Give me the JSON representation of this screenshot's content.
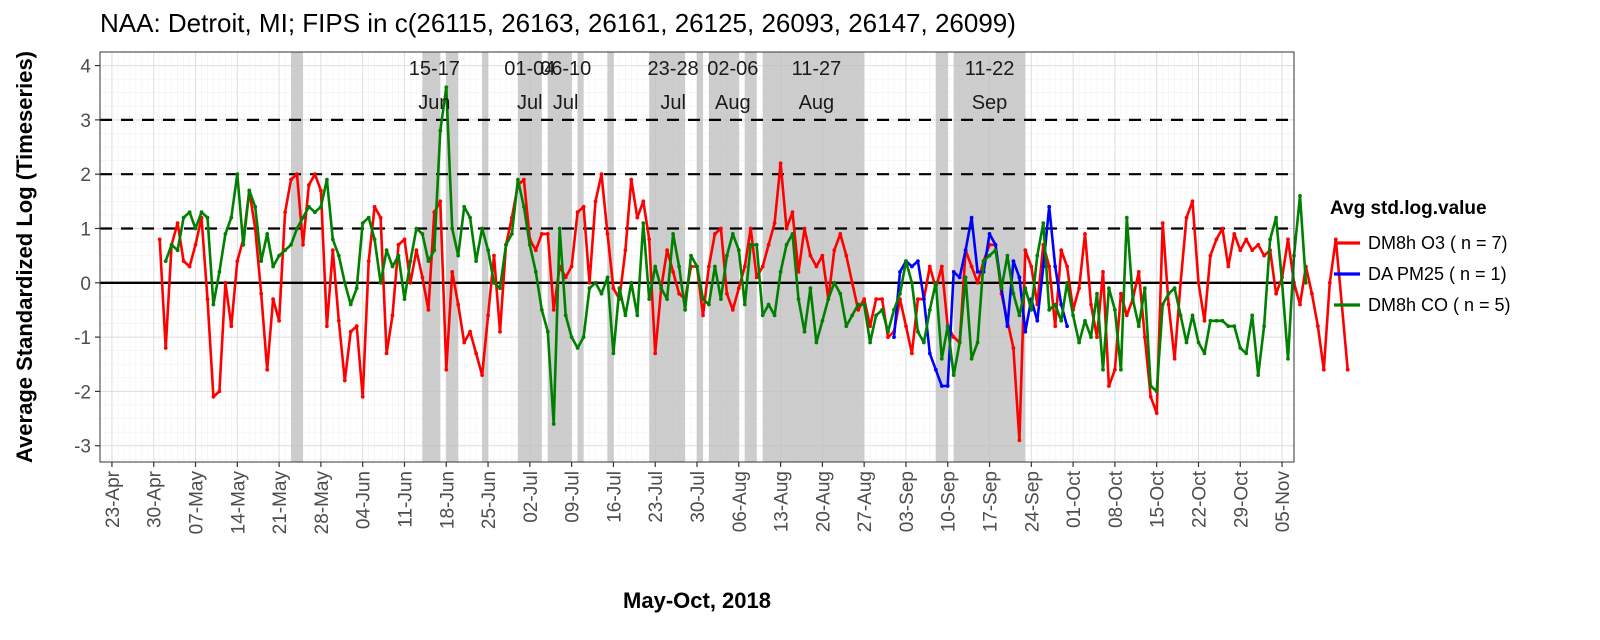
{
  "chart_data": {
    "type": "line",
    "title": "NAA: Detroit, MI; FIPS in c(26115, 26163, 26161, 26125, 26093, 26147, 26099)",
    "xlabel": "May-Oct, 2018",
    "ylabel": "Average Standardized Log (Timeseries)",
    "xlim": [
      "2018-04-21",
      "2018-11-07"
    ],
    "ylim": [
      -3.3,
      4.25
    ],
    "x_ticks": [
      "2018-04-23",
      "2018-04-30",
      "2018-05-07",
      "2018-05-14",
      "2018-05-21",
      "2018-05-28",
      "2018-06-04",
      "2018-06-11",
      "2018-06-18",
      "2018-06-25",
      "2018-07-02",
      "2018-07-09",
      "2018-07-16",
      "2018-07-23",
      "2018-07-30",
      "2018-08-06",
      "2018-08-13",
      "2018-08-20",
      "2018-08-27",
      "2018-09-03",
      "2018-09-10",
      "2018-09-17",
      "2018-09-24",
      "2018-10-01",
      "2018-10-08",
      "2018-10-15",
      "2018-10-22",
      "2018-10-29",
      "2018-11-05"
    ],
    "x_tick_labels": [
      "23-Apr",
      "30-Apr",
      "07-May",
      "14-May",
      "21-May",
      "28-May",
      "04-Jun",
      "11-Jun",
      "18-Jun",
      "25-Jun",
      "02-Jul",
      "09-Jul",
      "16-Jul",
      "23-Jul",
      "30-Jul",
      "06-Aug",
      "13-Aug",
      "20-Aug",
      "27-Aug",
      "03-Sep",
      "10-Sep",
      "17-Sep",
      "24-Sep",
      "01-Oct",
      "08-Oct",
      "15-Oct",
      "22-Oct",
      "29-Oct",
      "05-Nov"
    ],
    "y_ticks": [
      -3,
      -2,
      -1,
      0,
      1,
      2,
      3,
      4
    ],
    "y_tick_labels": [
      "-3",
      "-2",
      "-1",
      "0",
      "1",
      "2",
      "3",
      "4"
    ],
    "hlines_dashed": [
      1,
      2,
      3
    ],
    "hline_solid": 0,
    "grid": true,
    "legend": {
      "title": "Avg std.log.value",
      "placement": "right",
      "entries": [
        {
          "label": "DM8h O3 ( n = 7)",
          "color": "#ff0000"
        },
        {
          "label": "DA PM25 ( n = 1)",
          "color": "#0000ff"
        },
        {
          "label": "DM8h CO ( n = 5)",
          "color": "#008000"
        }
      ]
    },
    "shaded_periods": [
      [
        "2018-05-23",
        "2018-05-25"
      ],
      [
        "2018-06-14",
        "2018-06-17"
      ],
      [
        "2018-06-18",
        "2018-06-20"
      ],
      [
        "2018-06-24",
        "2018-06-25"
      ],
      [
        "2018-06-30",
        "2018-07-04"
      ],
      [
        "2018-07-05",
        "2018-07-09"
      ],
      [
        "2018-07-10",
        "2018-07-11"
      ],
      [
        "2018-07-15",
        "2018-07-16"
      ],
      [
        "2018-07-22",
        "2018-07-28"
      ],
      [
        "2018-07-30",
        "2018-07-31"
      ],
      [
        "2018-08-01",
        "2018-08-06"
      ],
      [
        "2018-08-07",
        "2018-08-09"
      ],
      [
        "2018-08-10",
        "2018-08-27"
      ],
      [
        "2018-09-08",
        "2018-09-10"
      ],
      [
        "2018-09-11",
        "2018-09-23"
      ]
    ],
    "annotations": [
      {
        "line1": "15-17",
        "line2": "Jun",
        "x": "2018-06-16"
      },
      {
        "line1": "01-04",
        "line2": "Jul",
        "x": "2018-07-02"
      },
      {
        "line1": "06-10",
        "line2": "Jul",
        "x": "2018-07-08"
      },
      {
        "line1": "23-28",
        "line2": "Jul",
        "x": "2018-07-26"
      },
      {
        "line1": "02-06",
        "line2": "Aug",
        "x": "2018-08-05"
      },
      {
        "line1": "11-27",
        "line2": "Aug",
        "x": "2018-08-19"
      },
      {
        "line1": "11-22",
        "line2": "Sep",
        "x": "2018-09-17"
      }
    ],
    "series": [
      {
        "name": "DM8h O3 ( n = 7)",
        "color": "#ff0000",
        "start": "2018-05-01",
        "values": [
          0.8,
          -1.2,
          0.7,
          1.1,
          0.4,
          0.3,
          0.7,
          1.2,
          -0.3,
          -2.1,
          -2.0,
          0.0,
          -0.8,
          0.4,
          0.8,
          1.7,
          1.0,
          -0.2,
          -1.6,
          -0.3,
          -0.7,
          1.3,
          1.9,
          2.0,
          0.7,
          1.8,
          2.0,
          1.7,
          -0.8,
          0.6,
          -0.7,
          -1.8,
          -0.9,
          -0.8,
          -2.1,
          0.4,
          1.4,
          1.2,
          -1.3,
          -0.6,
          0.7,
          0.8,
          0.0,
          0.6,
          0.1,
          -0.5,
          1.3,
          1.5,
          -1.6,
          0.2,
          -0.4,
          -1.1,
          -0.9,
          -1.3,
          -1.7,
          -0.6,
          0.5,
          -0.9,
          0.7,
          1.2,
          1.8,
          1.9,
          0.8,
          0.6,
          0.9,
          0.9,
          -0.5,
          0.3,
          0.1,
          0.3,
          1.3,
          1.4,
          0.0,
          1.5,
          2.0,
          0.9,
          -0.1,
          -0.3,
          0.6,
          1.9,
          1.2,
          1.5,
          0.8,
          -1.3,
          -0.1,
          0.6,
          0.2,
          -0.2,
          -0.3,
          0.3,
          0.3,
          -0.6,
          0.3,
          0.9,
          1.0,
          -0.2,
          -0.5,
          -0.1,
          0.3,
          1.0,
          0.1,
          0.3,
          0.7,
          1.1,
          2.2,
          1.0,
          1.3,
          0.2,
          1.0,
          0.5,
          0.3,
          0.5,
          -0.3,
          0.6,
          0.9,
          0.5,
          0.0,
          -0.5,
          -0.3,
          -0.8,
          -0.3,
          -0.3,
          -1.0,
          -0.9,
          -0.3,
          -0.8,
          -1.3,
          -0.3,
          -0.3,
          0.3,
          -0.1,
          0.3,
          -0.8,
          -1.0,
          -1.1,
          0.6,
          0.3,
          0.0,
          0.4,
          0.7,
          0.7,
          -0.2,
          -0.7,
          -1.2,
          -2.9,
          0.6,
          0.3,
          -0.4,
          0.7,
          0.3,
          -0.8,
          0.6,
          0.3,
          -0.5,
          -0.1,
          0.9,
          -0.4,
          -1.0,
          0.2,
          -1.9,
          -1.6,
          -0.2,
          -0.6,
          -0.3,
          0.2,
          -1.0,
          -2.1,
          -2.4,
          1.1,
          -0.4,
          -1.4,
          0.0,
          1.2,
          1.5,
          0.0,
          -0.7,
          0.5,
          0.8,
          1.0,
          0.3,
          0.9,
          0.6,
          0.8,
          0.6,
          0.7,
          0.5,
          0.6,
          -0.2,
          0.1,
          0.8,
          0.0,
          -0.4,
          0.3,
          -0.2,
          -0.8,
          -1.6,
          0.0,
          0.8,
          -0.4,
          -1.6
        ]
      },
      {
        "name": "DA PM25 ( n = 1)",
        "color": "#0000ff",
        "start": "2018-09-01",
        "values": [
          -1.0,
          0.2,
          0.4,
          0.3,
          0.4,
          -0.3,
          -1.3,
          -1.6,
          -1.9,
          -1.9,
          0.2,
          0.1,
          0.6,
          1.2,
          0.2,
          0.2,
          0.9,
          0.7,
          -0.1,
          -0.8,
          0.4,
          0.1,
          -0.9,
          -0.3,
          -0.7,
          0.3,
          1.4,
          0.3,
          -0.4,
          -0.8
        ]
      },
      {
        "name": "DM8h CO ( n = 5)",
        "color": "#008000",
        "start": "2018-05-02",
        "values": [
          0.4,
          0.7,
          0.6,
          1.2,
          1.3,
          1.0,
          1.3,
          1.2,
          -0.4,
          0.2,
          0.9,
          1.2,
          2.0,
          0.7,
          1.7,
          1.4,
          0.4,
          0.9,
          0.3,
          0.5,
          0.6,
          0.7,
          1.0,
          1.2,
          1.4,
          1.3,
          1.4,
          1.9,
          0.8,
          0.5,
          0.0,
          -0.4,
          -0.1,
          1.1,
          1.2,
          0.8,
          0.0,
          0.6,
          0.3,
          0.5,
          -0.3,
          0.4,
          1.0,
          0.9,
          0.4,
          0.6,
          2.8,
          3.6,
          1.0,
          0.5,
          1.4,
          1.2,
          0.4,
          1.0,
          0.6,
          0.0,
          -0.1,
          0.7,
          0.9,
          1.9,
          1.4,
          0.7,
          0.2,
          -0.5,
          -0.9,
          -2.6,
          1.0,
          -0.6,
          -1.0,
          -1.2,
          -1.0,
          -0.1,
          0.0,
          -0.2,
          0.1,
          -1.3,
          -0.1,
          -0.6,
          0.0,
          -0.6,
          1.1,
          -0.3,
          0.3,
          -0.1,
          -0.3,
          0.9,
          0.3,
          -0.5,
          0.5,
          0.3,
          -0.3,
          -0.4,
          0.3,
          -0.3,
          0.5,
          0.9,
          0.6,
          -0.4,
          0.7,
          0.7,
          -0.6,
          -0.4,
          -0.6,
          0.2,
          0.7,
          0.9,
          -0.3,
          -0.9,
          -0.1,
          -1.1,
          -0.7,
          -0.3,
          0.0,
          -0.2,
          -0.8,
          -0.6,
          -0.4,
          -0.4,
          -1.1,
          -0.6,
          -0.5,
          -0.9,
          -0.5,
          -0.2,
          0.4,
          0.0,
          -0.9,
          -1.1,
          -0.5,
          0.0,
          -1.4,
          -0.8,
          -1.7,
          -1.1,
          0.1,
          -1.4,
          -1.1,
          0.4,
          0.5,
          0.6,
          -0.1,
          0.5,
          -0.2,
          -0.6,
          -0.1,
          -0.5,
          0.5,
          1.1,
          -0.5,
          -0.4,
          -0.7,
          0.0,
          -0.6,
          -1.1,
          -0.7,
          -1.0,
          -0.2,
          -1.6,
          -0.1,
          -0.5,
          -1.6,
          1.2,
          -0.3,
          -0.8,
          -0.1,
          -1.9,
          -2.0,
          -0.4,
          -0.2,
          -0.1,
          -0.6,
          -1.1,
          -0.6,
          -1.1,
          -1.3,
          -0.7,
          -0.7,
          -0.7,
          -0.8,
          -0.8,
          -1.2,
          -1.3,
          -0.6,
          -1.7,
          -0.8,
          0.8,
          1.2,
          0.0,
          -1.4,
          0.5,
          1.6,
          0.0
        ]
      }
    ]
  }
}
